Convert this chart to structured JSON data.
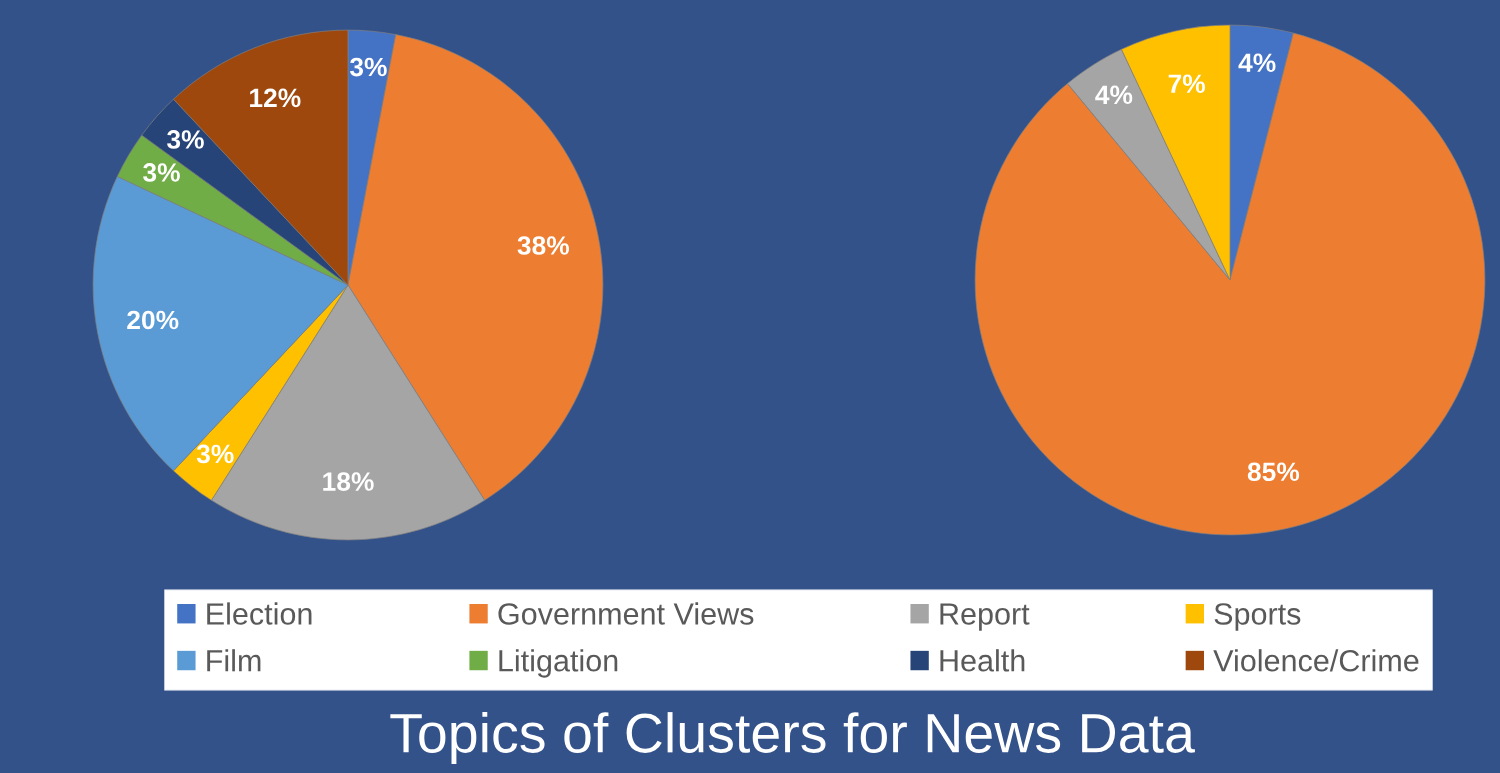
{
  "chart_data": [
    {
      "type": "pie",
      "categories": [
        "Election",
        "Government Views",
        "Report",
        "Sports",
        "Film",
        "Litigation",
        "Health",
        "Violence/Crime"
      ],
      "values": [
        3,
        38,
        18,
        3,
        20,
        3,
        3,
        12
      ],
      "value_labels": [
        "3%",
        "38%",
        "18%",
        "3%",
        "20%",
        "3%",
        "3%",
        "12%"
      ],
      "colors": [
        "#4472c4",
        "#ed7d31",
        "#a5a5a5",
        "#ffc000",
        "#5b9bd5",
        "#70ad47",
        "#264478",
        "#9e480e"
      ],
      "legend": "bottom",
      "annotations": [
        "Topics of Clusters for News Data"
      ]
    },
    {
      "type": "pie",
      "categories": [
        null,
        null,
        null,
        null
      ],
      "values": [
        4,
        85,
        4,
        7
      ],
      "value_labels": [
        "4%",
        "85%",
        "4%",
        "7%"
      ],
      "colors": [
        "#4472c4",
        "#ed7d31",
        "#a5a5a5",
        "#ffc000"
      ]
    }
  ]
}
